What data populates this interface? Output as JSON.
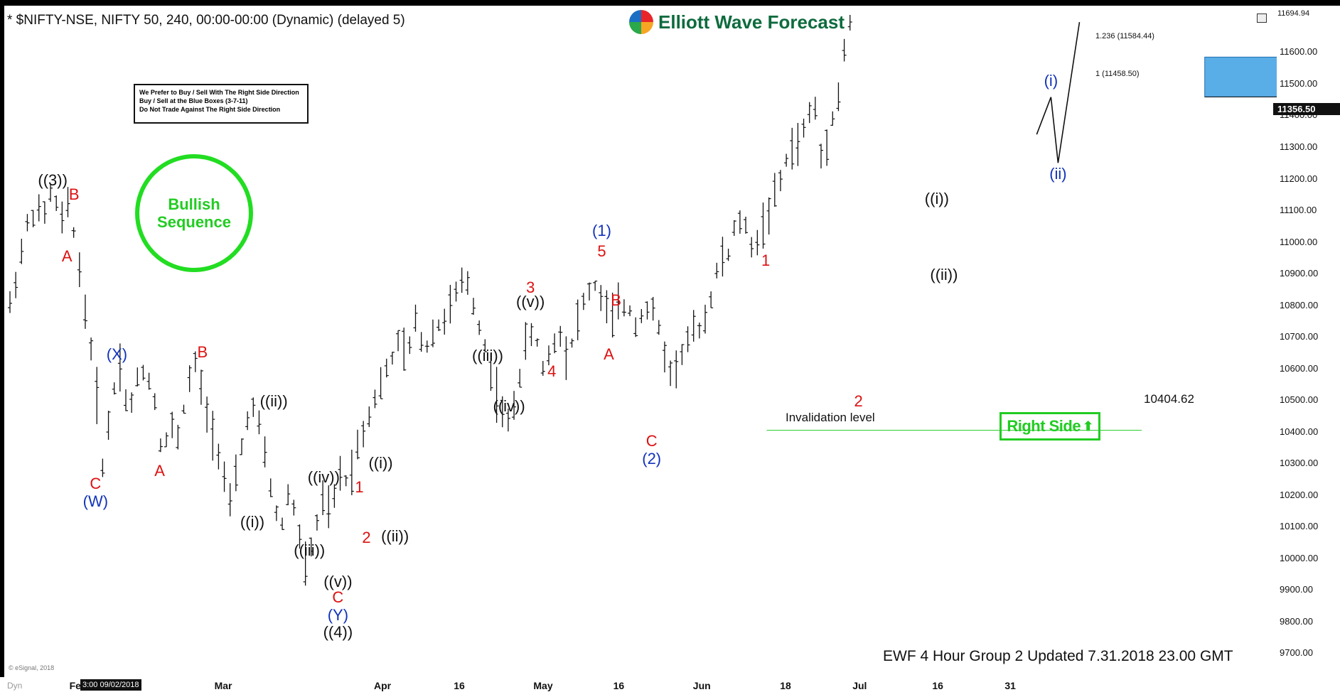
{
  "header": {
    "symbol_line": "* $NIFTY-NSE, NIFTY 50, 240, 00:00-00:00 (Dynamic) (delayed 5)",
    "brand": "Elliott Wave Forecast"
  },
  "rules_box": {
    "lines": [
      "We Prefer to Buy / Sell With The Right Side Direction",
      "Buy / Sell at the Blue Boxes (3-7-11)",
      "Do Not Trade Against The Right Side Direction"
    ]
  },
  "bullish_badge": {
    "line1": "Bullish",
    "line2": "Sequence",
    "color": "#22dd22"
  },
  "right_side_badge": {
    "label": "Right Side",
    "arrow": "⬆",
    "color": "#22cc22"
  },
  "invalidation": {
    "label": "Invalidation level",
    "value_label": "10404.62"
  },
  "fib": {
    "upper_label": "1.236 (11584.44)",
    "lower_label": "1 (11458.50)"
  },
  "footer": {
    "text": "EWF 4 Hour Group 2 Updated 7.31.2018 23.00 GMT",
    "credit": "© eSignal, 2018"
  },
  "price_tag": "11356.50",
  "top_price": "11694.94",
  "x_date_box": "3:00 09/02/2018",
  "colors": {
    "red_label": "#dd1111",
    "blue_label": "#1133bb",
    "black_label": "#111111",
    "blue_box": "#5aaee8",
    "invalid_line": "#22cc22"
  },
  "chart_data": {
    "type": "ohlc-bars",
    "title": "$NIFTY-NSE, NIFTY 50, 240",
    "ylim": [
      9620,
      11720
    ],
    "y_ticks": [
      9700,
      9800,
      9900,
      10000,
      10100,
      10200,
      10300,
      10400,
      10500,
      10600,
      10700,
      10800,
      10900,
      11000,
      11100,
      11200,
      11300,
      11400,
      11500,
      11600
    ],
    "y_tick_labels": [
      "9700.00",
      "9800.00",
      "9900.00",
      "10000.00",
      "10100.00",
      "10200.00",
      "10300.00",
      "10400.00",
      "10500.00",
      "10600.00",
      "10700.00",
      "10800.00",
      "10900.00",
      "11000.00",
      "11100.00",
      "11200.00",
      "11300.00",
      "11400.00",
      "11500.00",
      "11600.00"
    ],
    "x_ticks": [
      {
        "label": "Feb",
        "index": 8
      },
      {
        "label": "Mar",
        "index": 28
      },
      {
        "label": "Apr",
        "index": 50
      },
      {
        "label": "16",
        "index": 61
      },
      {
        "label": "May",
        "index": 72
      },
      {
        "label": "16",
        "index": 83
      },
      {
        "label": "Jun",
        "index": 94
      },
      {
        "label": "18",
        "index": 106
      },
      {
        "label": "Jul",
        "index": 116
      },
      {
        "label": "16",
        "index": 127
      },
      {
        "label": "31",
        "index": 137
      }
    ],
    "x_axis_extra_labels": [
      "Dyn"
    ],
    "price_path": [
      [
        0,
        10800
      ],
      [
        1,
        10920
      ],
      [
        2,
        11050
      ],
      [
        3,
        11100
      ],
      [
        4,
        11080
      ],
      [
        5,
        11170
      ],
      [
        6,
        11060
      ],
      [
        7,
        11120
      ],
      [
        8,
        10960
      ],
      [
        9,
        10760
      ],
      [
        10,
        10600
      ],
      [
        11,
        10280
      ],
      [
        12,
        10500
      ],
      [
        13,
        10620
      ],
      [
        14,
        10450
      ],
      [
        15,
        10560
      ],
      [
        16,
        10600
      ],
      [
        17,
        10520
      ],
      [
        18,
        10330
      ],
      [
        19,
        10420
      ],
      [
        20,
        10380
      ],
      [
        21,
        10550
      ],
      [
        22,
        10620
      ],
      [
        23,
        10480
      ],
      [
        24,
        10400
      ],
      [
        25,
        10310
      ],
      [
        26,
        10160
      ],
      [
        27,
        10290
      ],
      [
        28,
        10440
      ],
      [
        29,
        10480
      ],
      [
        30,
        10340
      ],
      [
        31,
        10200
      ],
      [
        32,
        10080
      ],
      [
        33,
        10220
      ],
      [
        34,
        10110
      ],
      [
        35,
        9960
      ],
      [
        36,
        10080
      ],
      [
        37,
        10180
      ],
      [
        38,
        10140
      ],
      [
        39,
        10270
      ],
      [
        40,
        10240
      ],
      [
        41,
        10350
      ],
      [
        42,
        10420
      ],
      [
        43,
        10500
      ],
      [
        44,
        10560
      ],
      [
        45,
        10620
      ],
      [
        46,
        10690
      ],
      [
        47,
        10630
      ],
      [
        48,
        10760
      ],
      [
        49,
        10650
      ],
      [
        50,
        10720
      ],
      [
        51,
        10740
      ],
      [
        52,
        10790
      ],
      [
        53,
        10850
      ],
      [
        54,
        10880
      ],
      [
        55,
        10780
      ],
      [
        56,
        10690
      ],
      [
        57,
        10580
      ],
      [
        58,
        10470
      ],
      [
        59,
        10420
      ],
      [
        60,
        10540
      ],
      [
        61,
        10680
      ],
      [
        62,
        10720
      ],
      [
        63,
        10600
      ],
      [
        64,
        10660
      ],
      [
        65,
        10720
      ],
      [
        66,
        10630
      ],
      [
        67,
        10750
      ],
      [
        68,
        10820
      ],
      [
        69,
        10870
      ],
      [
        70,
        10820
      ],
      [
        71,
        10760
      ],
      [
        72,
        10790
      ],
      [
        73,
        10800
      ],
      [
        74,
        10740
      ],
      [
        75,
        10790
      ],
      [
        76,
        10780
      ],
      [
        77,
        10700
      ],
      [
        78,
        10580
      ],
      [
        79,
        10620
      ],
      [
        80,
        10680
      ],
      [
        81,
        10720
      ],
      [
        82,
        10740
      ],
      [
        83,
        10840
      ],
      [
        84,
        10950
      ],
      [
        85,
        10960
      ],
      [
        86,
        11080
      ],
      [
        87,
        11040
      ],
      [
        88,
        10970
      ],
      [
        89,
        11050
      ],
      [
        90,
        11120
      ],
      [
        91,
        11180
      ],
      [
        92,
        11280
      ],
      [
        93,
        11310
      ],
      [
        94,
        11360
      ],
      [
        95,
        11458
      ],
      [
        96,
        11250
      ],
      [
        97,
        11380
      ],
      [
        98,
        11460
      ],
      [
        99,
        11690
      ]
    ],
    "invalidation_level": 10404.62,
    "fib_levels": [
      {
        "label": "1.236",
        "value": 11584.44
      },
      {
        "label": "1",
        "value": 11458.5
      }
    ],
    "wave_labels": [
      {
        "text": "((3))",
        "color": "black",
        "x_idx": 6,
        "y": 11195
      },
      {
        "text": "B",
        "color": "red",
        "x_idx": 9,
        "y": 11150
      },
      {
        "text": "A",
        "color": "red",
        "x_idx": 8,
        "y": 10955
      },
      {
        "text": "(X)",
        "color": "blue",
        "x_idx": 15,
        "y": 10645
      },
      {
        "text": "B",
        "color": "red",
        "x_idx": 27,
        "y": 10650
      },
      {
        "text": "C",
        "color": "red",
        "x_idx": 12,
        "y": 10235
      },
      {
        "text": "(W)",
        "color": "blue",
        "x_idx": 12,
        "y": 10180
      },
      {
        "text": "A",
        "color": "red",
        "x_idx": 21,
        "y": 10275
      },
      {
        "text": "((ii))",
        "color": "black",
        "x_idx": 37,
        "y": 10495
      },
      {
        "text": "((i))",
        "color": "black",
        "x_idx": 34,
        "y": 10115
      },
      {
        "text": "((iv))",
        "color": "black",
        "x_idx": 44,
        "y": 10255
      },
      {
        "text": "((iii))",
        "color": "black",
        "x_idx": 42,
        "y": 10025
      },
      {
        "text": "((v))",
        "color": "black",
        "x_idx": 46,
        "y": 9925
      },
      {
        "text": "C",
        "color": "red",
        "x_idx": 46,
        "y": 9875
      },
      {
        "text": "(Y)",
        "color": "blue",
        "x_idx": 46,
        "y": 9820
      },
      {
        "text": "((4))",
        "color": "black",
        "x_idx": 46,
        "y": 9765
      },
      {
        "text": "1",
        "color": "red",
        "x_idx": 49,
        "y": 10225
      },
      {
        "text": "2",
        "color": "red",
        "x_idx": 50,
        "y": 10065
      },
      {
        "text": "((i))",
        "color": "black",
        "x_idx": 52,
        "y": 10300
      },
      {
        "text": "((ii))",
        "color": "black",
        "x_idx": 54,
        "y": 10070
      },
      {
        "text": "((iii))",
        "color": "black",
        "x_idx": 67,
        "y": 10640
      },
      {
        "text": "((iv))",
        "color": "black",
        "x_idx": 70,
        "y": 10480
      },
      {
        "text": "3",
        "color": "red",
        "x_idx": 73,
        "y": 10855
      },
      {
        "text": "((v))",
        "color": "black",
        "x_idx": 73,
        "y": 10810
      },
      {
        "text": "4",
        "color": "red",
        "x_idx": 76,
        "y": 10590
      },
      {
        "text": "(1)",
        "color": "blue",
        "x_idx": 83,
        "y": 11035
      },
      {
        "text": "5",
        "color": "red",
        "x_idx": 83,
        "y": 10970
      },
      {
        "text": "B",
        "color": "red",
        "x_idx": 85,
        "y": 10815
      },
      {
        "text": "A",
        "color": "red",
        "x_idx": 84,
        "y": 10645
      },
      {
        "text": "C",
        "color": "red",
        "x_idx": 90,
        "y": 10370
      },
      {
        "text": "(2)",
        "color": "blue",
        "x_idx": 90,
        "y": 10315
      },
      {
        "text": "1",
        "color": "red",
        "x_idx": 106,
        "y": 10940
      },
      {
        "text": "2",
        "color": "red",
        "x_idx": 119,
        "y": 10495
      },
      {
        "text": "((i))",
        "color": "black",
        "x_idx": 130,
        "y": 11135
      },
      {
        "text": "((ii))",
        "color": "black",
        "x_idx": 131,
        "y": 10895
      },
      {
        "text": "(i)",
        "color": "blue",
        "x_idx": 146,
        "y": 11510
      },
      {
        "text": "(ii)",
        "color": "blue",
        "x_idx": 147,
        "y": 11215
      }
    ],
    "projection": [
      {
        "x_idx": 144,
        "y": 11340
      },
      {
        "x_idx": 146,
        "y": 11458
      },
      {
        "x_idx": 147,
        "y": 11250
      },
      {
        "x_idx": 150,
        "y": 11695
      }
    ],
    "blue_box": {
      "x_idx_start": 142,
      "x_idx_end": 152,
      "y_low": 11458.5,
      "y_high": 11584.44
    }
  }
}
